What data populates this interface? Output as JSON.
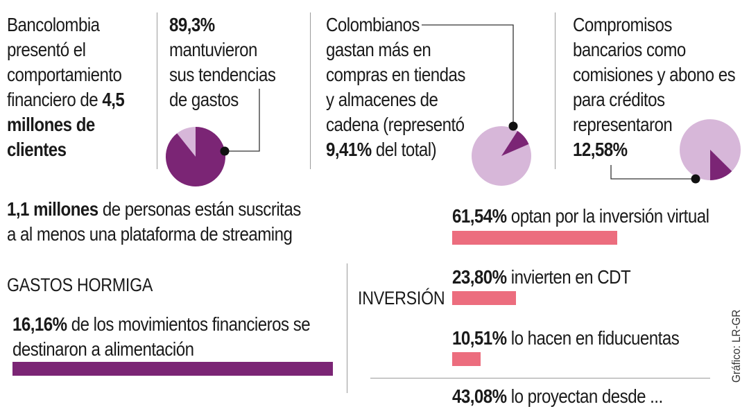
{
  "colors": {
    "dark_purple": "#7b2575",
    "light_purple": "#d7b7d9",
    "pink": "#ec6d7e",
    "rule": "#9a9a9a"
  },
  "intro": {
    "line1": "Bancolombia",
    "line2": "presentó el",
    "line3": "comportamiento",
    "line4_pre": "financiero de ",
    "line4_bold": "4,5",
    "line5_bold": "millones de",
    "line6_bold": "clientes"
  },
  "stat1": {
    "value": "89,3%",
    "line2": "mantuvieron",
    "line3": "sus tendencias",
    "line4": "de gastos"
  },
  "stat2": {
    "line1": "Colombianos",
    "line2": "gastan más en",
    "line3": "compras en tiendas",
    "line4": "y almacenes de",
    "line5": "cadena (representó",
    "value": "9,41%",
    "line6_post": " del total)"
  },
  "stat3": {
    "line1": "Compromisos",
    "line2": "bancarios como",
    "line3": "comisiones y abono es",
    "line4": "para créditos",
    "line5": "representaron",
    "value": "12,58%"
  },
  "streaming": {
    "bold": "1,1 millones",
    "rest": " de personas están suscritas",
    "line2": "a al menos una plataforma de streaming"
  },
  "gastos_hormiga": {
    "heading": "GASTOS HORMIGA",
    "value": "16,16%",
    "text": " de los movimientos financieros se",
    "line2": "destinaron a alimentación"
  },
  "inversion": {
    "heading": "INVERSIÓN",
    "items": [
      {
        "value": "61,54%",
        "text": " optan por la inversión virtual"
      },
      {
        "value": "23,80%",
        "text": " invierten en CDT"
      },
      {
        "value": "10,51%",
        "text": " lo hacen en fiducuentas"
      },
      {
        "value": "43,08%",
        "text": " lo proyectan desde ..."
      }
    ]
  },
  "credit": "Gráfico: LR-GR",
  "chart_data": [
    {
      "type": "pie",
      "categories": [
        "mantuvieron sus tendencias de gastos",
        "resto"
      ],
      "values": [
        89.3,
        10.7
      ]
    },
    {
      "type": "pie",
      "categories": [
        "compras en tiendas y almacenes de cadena",
        "resto"
      ],
      "values": [
        9.41,
        90.59
      ]
    },
    {
      "type": "pie",
      "categories": [
        "compromisos bancarios",
        "resto"
      ],
      "values": [
        12.58,
        87.42
      ]
    },
    {
      "type": "bar",
      "categories": [
        "alimentación"
      ],
      "values": [
        16.16
      ]
    },
    {
      "type": "bar",
      "categories": [
        "inversión virtual",
        "CDT",
        "fiducuentas"
      ],
      "values": [
        61.54,
        23.8,
        10.51
      ]
    }
  ]
}
